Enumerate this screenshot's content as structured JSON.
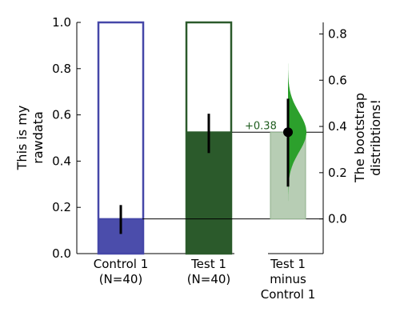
{
  "chart_data": {
    "type": "bar",
    "title": "",
    "left_axis": {
      "label_lines": [
        "This is my",
        "rawdata"
      ],
      "ylim": [
        0.0,
        1.0
      ],
      "ticks": [
        "0.0",
        "0.2",
        "0.4",
        "0.6",
        "0.8",
        "1.0"
      ]
    },
    "right_axis": {
      "label_lines": [
        "The bootstrap",
        "distribtions!"
      ],
      "ylim": [
        -0.15,
        0.85
      ],
      "ticks": [
        "0.0",
        "0.2",
        "0.4",
        "0.6",
        "0.8"
      ]
    },
    "categories": [
      {
        "label_lines": [
          "Control 1",
          "(N=40)"
        ],
        "value": 0.15,
        "ci": [
          0.085,
          0.21
        ],
        "color": "#4b4dab",
        "outline": "#4547a8"
      },
      {
        "label_lines": [
          "Test 1",
          "(N=40)"
        ],
        "value": 0.525,
        "ci": [
          0.435,
          0.605
        ],
        "color": "#2b5a2b",
        "outline": "#2b5a2b"
      }
    ],
    "delta": {
      "label_lines": [
        "Test 1",
        "minus",
        "Control 1"
      ],
      "estimate": 0.375,
      "ci": [
        0.14,
        0.52
      ],
      "annotation": "+0.38",
      "dist_color": "#2ca02c",
      "bar_color": "#b7cdb4",
      "annotation_color": "#1f5d1f"
    }
  }
}
